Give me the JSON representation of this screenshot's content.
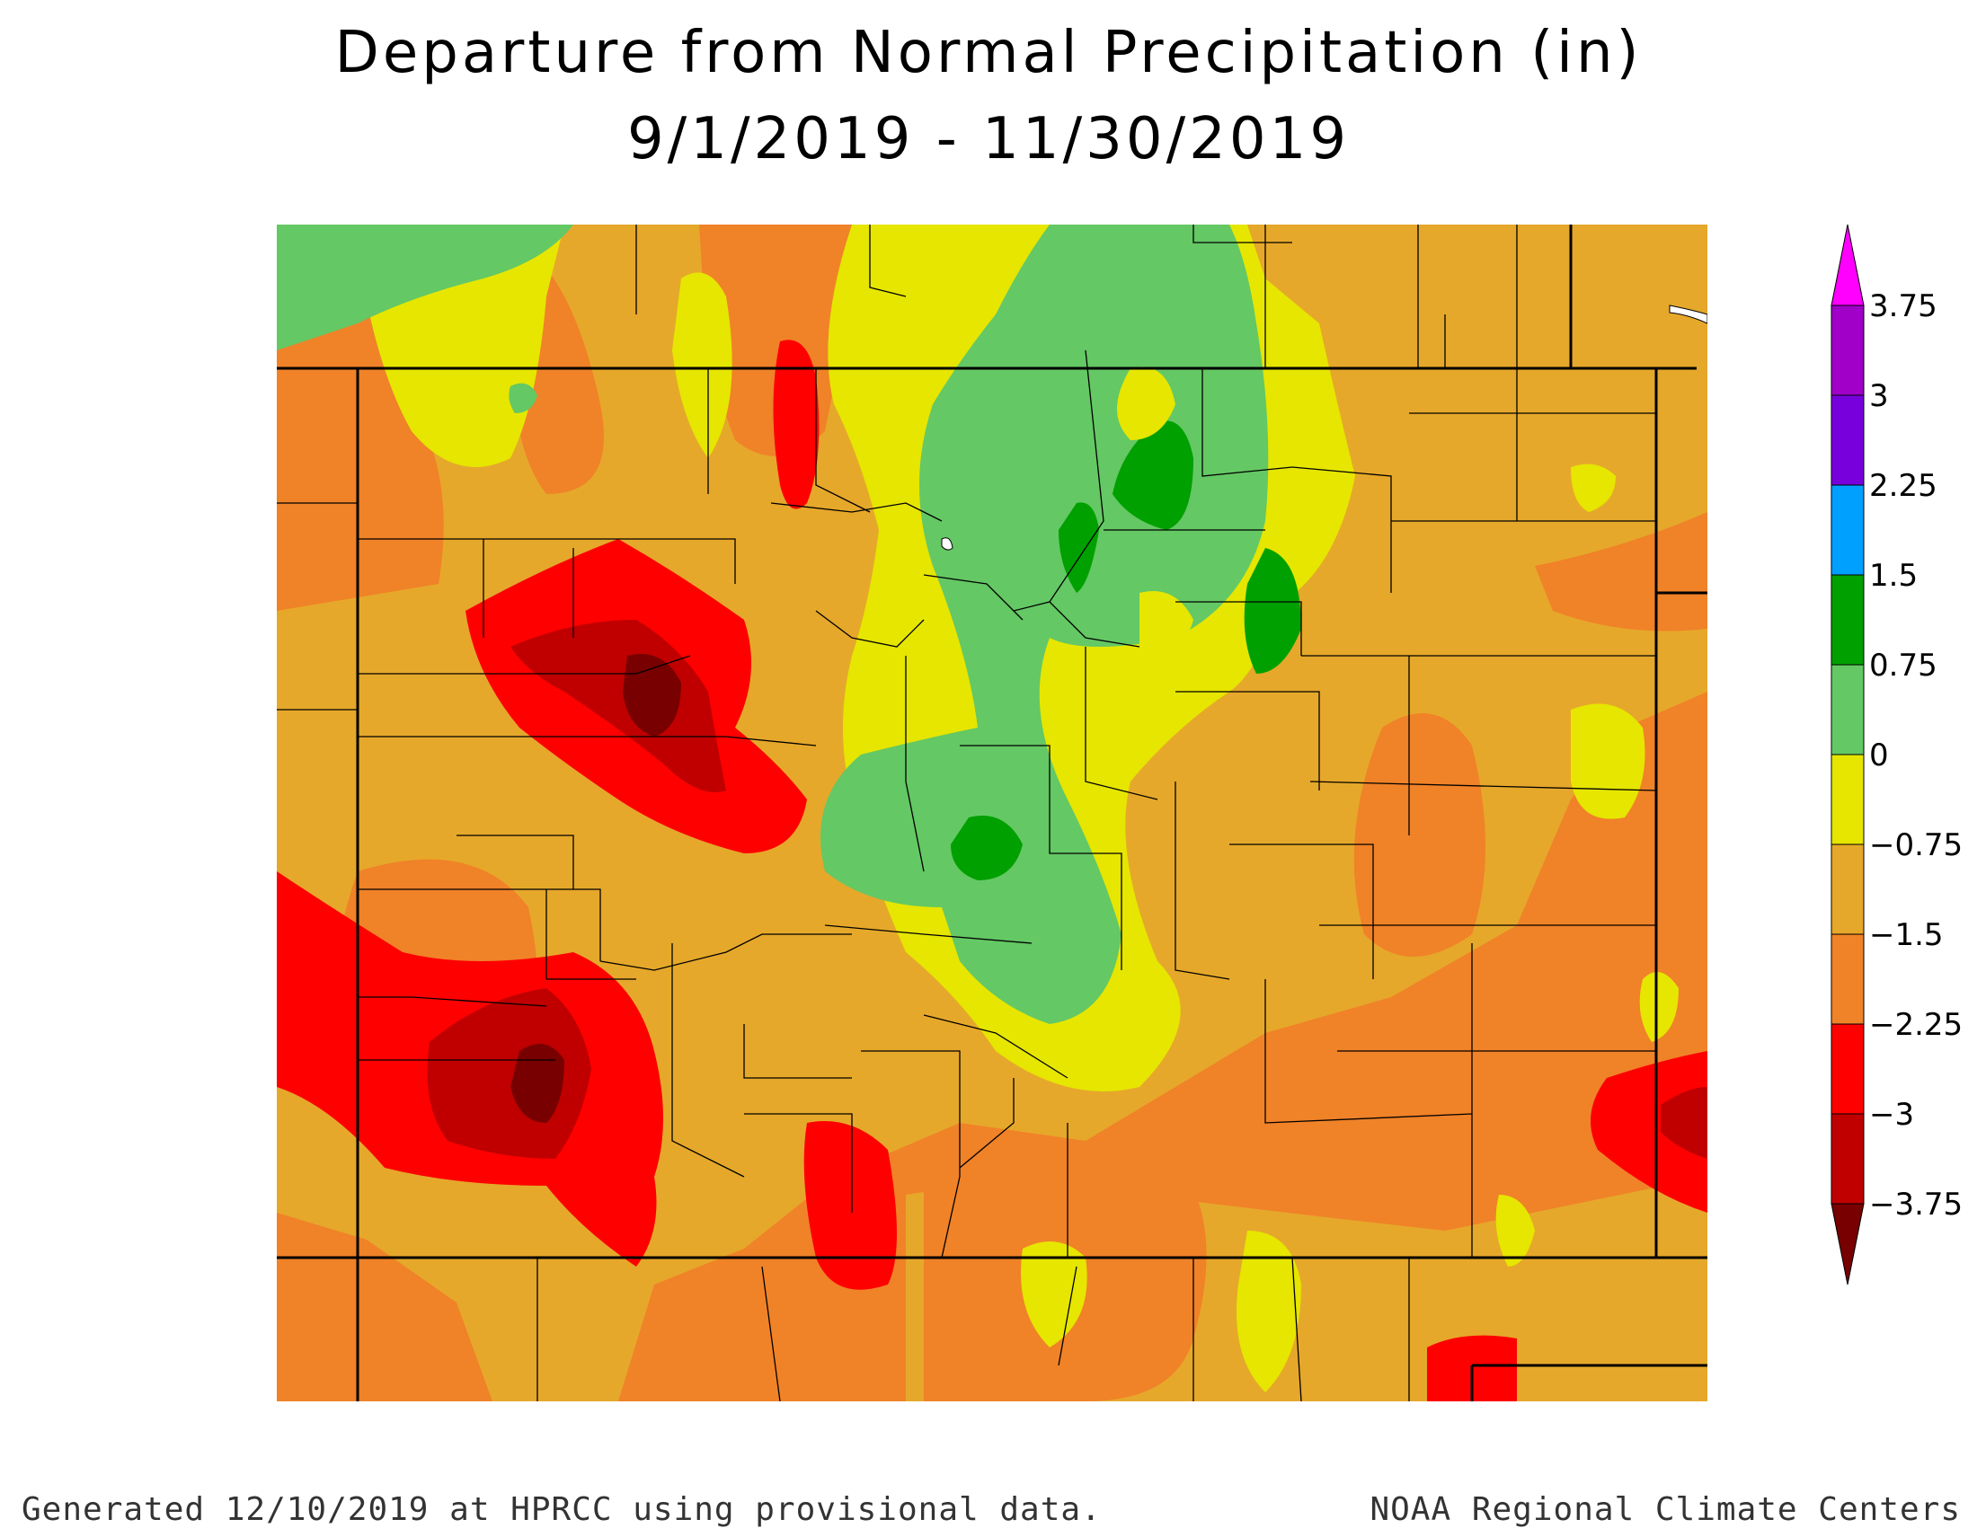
{
  "title": {
    "line1": "Departure from Normal Precipitation (in)",
    "line2": "9/1/2019 - 11/30/2019"
  },
  "legend": {
    "labels": [
      "3.75",
      "3",
      "2.25",
      "1.5",
      "0.75",
      "0",
      "−0.75",
      "−1.5",
      "−2.25",
      "−3",
      "−3.75"
    ],
    "colors": [
      "#ff00ff",
      "#a000c8",
      "#7800dc",
      "#00a0ff",
      "#00a000",
      "#64c864",
      "#e6e600",
      "#e6a82a",
      "#f08228",
      "#ff0000",
      "#c00000",
      "#780000"
    ]
  },
  "footer": {
    "left": "Generated 12/10/2019 at HPRCC using provisional data.",
    "right": "NOAA Regional Climate Centers"
  }
}
